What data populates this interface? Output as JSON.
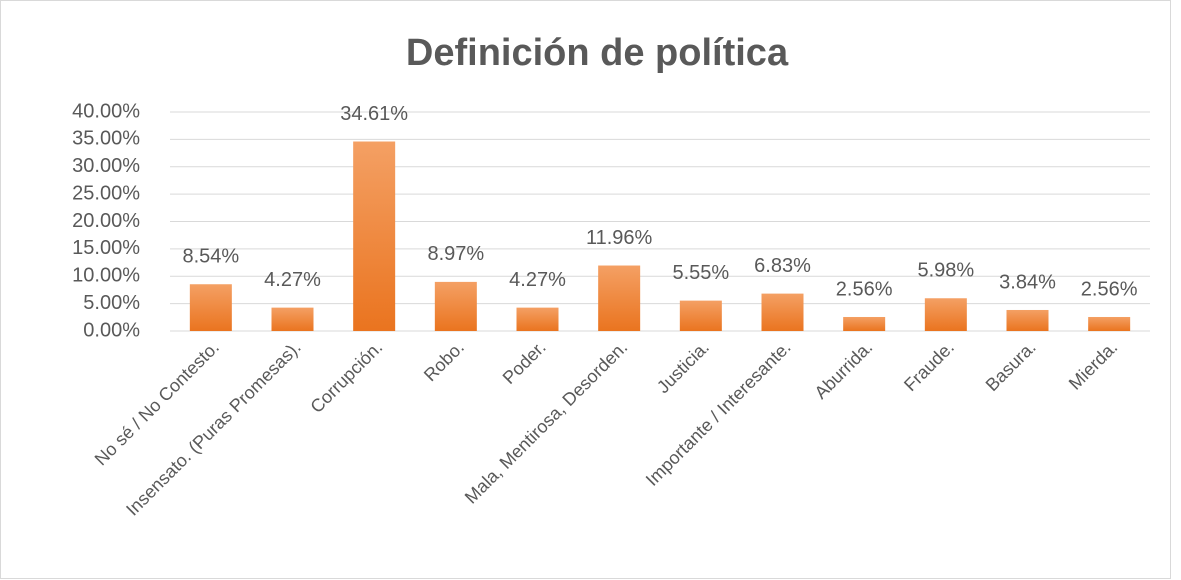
{
  "chart_data": {
    "type": "bar",
    "title": "Definición de política",
    "categories": [
      "No sé / No Contesto.",
      "Insensato. (Puras Promesas).",
      "Corrupción.",
      "Robo.",
      "Poder.",
      "Mala, Mentirosa, Desorden.",
      "Justicia.",
      "Importante / Interesante.",
      "Aburrida.",
      "Fraude.",
      "Basura.",
      "Mierda."
    ],
    "values": [
      8.54,
      4.27,
      34.61,
      8.97,
      4.27,
      11.96,
      5.55,
      6.83,
      2.56,
      5.98,
      3.84,
      2.56
    ],
    "value_labels": [
      "8.54%",
      "4.27%",
      "34.61%",
      "8.97%",
      "4.27%",
      "11.96%",
      "5.55%",
      "6.83%",
      "2.56%",
      "5.98%",
      "3.84%",
      "2.56%"
    ],
    "color": "#ed7d31",
    "ylim": [
      0,
      40
    ],
    "yticks": [
      {
        "value": 0,
        "label": "0.00%"
      },
      {
        "value": 5,
        "label": "5.00%"
      },
      {
        "value": 10,
        "label": "10.00%"
      },
      {
        "value": 15,
        "label": "15.00%"
      },
      {
        "value": 20,
        "label": "20.00%"
      },
      {
        "value": 25,
        "label": "25.00%"
      },
      {
        "value": 30,
        "label": "30.00%"
      },
      {
        "value": 35,
        "label": "35.00%"
      },
      {
        "value": 40,
        "label": "40.00%"
      }
    ],
    "grid": true
  }
}
